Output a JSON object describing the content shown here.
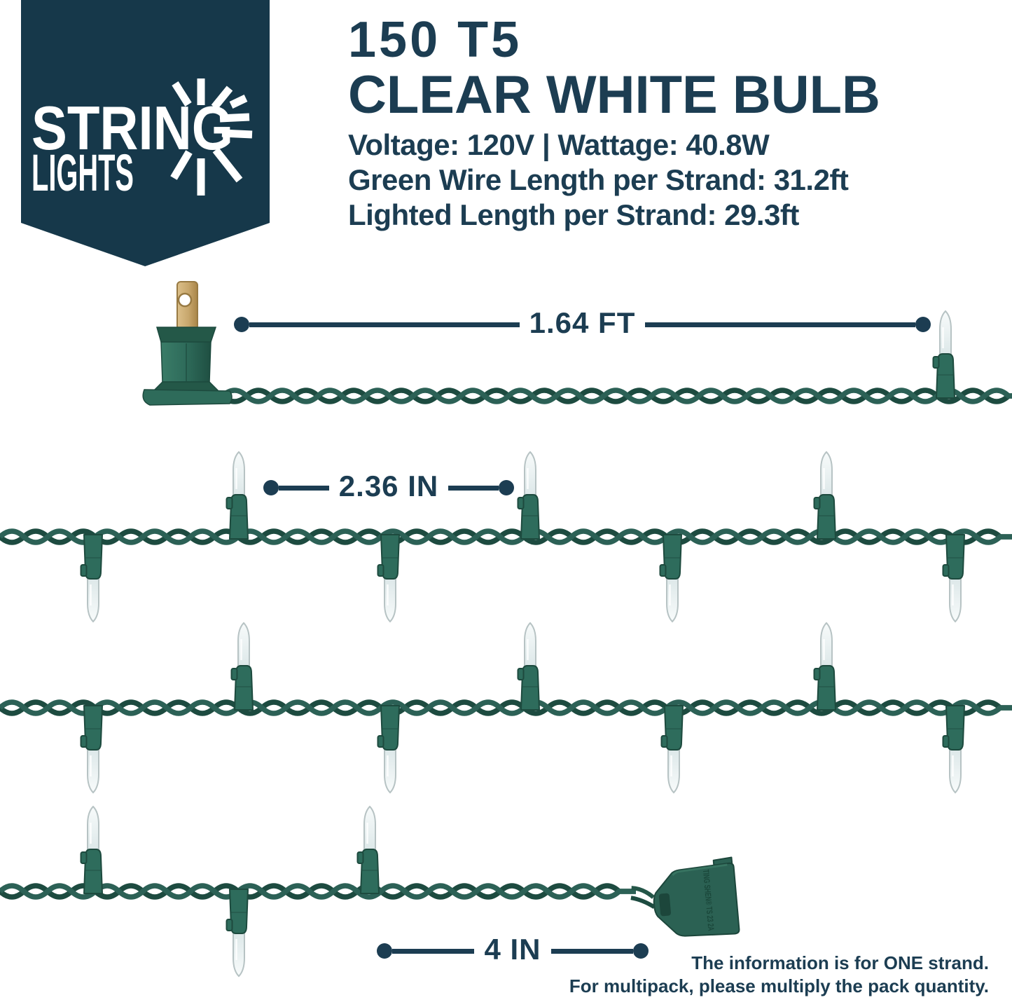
{
  "brand": {
    "name_line1": "STRING",
    "name_line2": "LIGHTS",
    "burst_icon": "light-burst-icon"
  },
  "header": {
    "title_line1": "150 T5",
    "title_line2": "CLEAR WHITE BULB",
    "spec_voltage_wattage": "Voltage: 120V | Wattage: 40.8W",
    "spec_wire_length": "Green Wire Length per Strand: 31.2ft",
    "spec_lighted_length": "Lighted Length per Strand: 29.3ft"
  },
  "dimensions": {
    "plug_to_first_bulb": "1.64 FT",
    "bulb_spacing": "2.36 IN",
    "connector_gap": "4 IN"
  },
  "connector_label": "TING SHEN® TS 23 2A",
  "footnote": {
    "line1": "The information is for ONE strand.",
    "line2": "For multipack, please multiply the pack quantity."
  },
  "colors": {
    "navy_text": "#1c3d52",
    "badge_navy": "#16384a",
    "wire_green": "#2c6156",
    "wire_green_shadow": "#1d4b40",
    "socket_green": "#2e6c5c",
    "glass_outline": "#b7c3c4",
    "brass": "#c8a76d",
    "background": "#ffffff"
  }
}
